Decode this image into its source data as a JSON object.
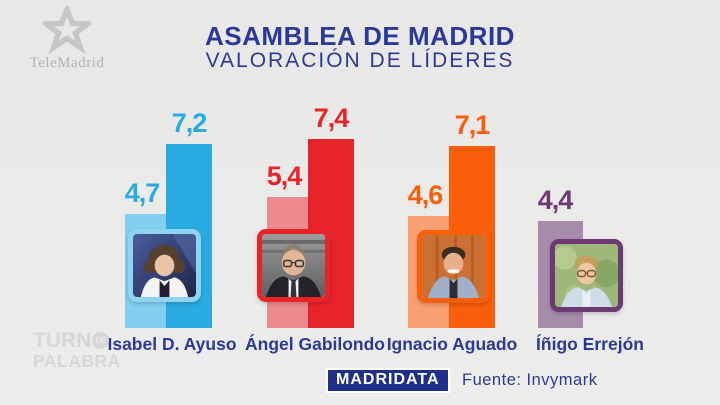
{
  "header": {
    "channel": "TeleMadrid",
    "channel_logo_color": "#c7c6c5"
  },
  "chart_data": {
    "type": "bar",
    "title": "ASAMBLEA DE MADRID",
    "subtitle": "VALORACIÓN DE LÍDERES",
    "title_color": "#2b3a98",
    "categories": [
      "Isabel D. Ayuso",
      "Ángel Gabilondo",
      "Ignacio Aguado",
      "Íñigo Errejón"
    ],
    "series": [
      {
        "name": "valor-bajo",
        "values": [
          4.7,
          5.4,
          4.6,
          4.4
        ]
      },
      {
        "name": "valor-alto",
        "values": [
          7.2,
          7.4,
          7.1,
          null
        ]
      }
    ],
    "ylim": [
      0,
      8
    ],
    "grid": false,
    "legend": "none",
    "leaders": [
      {
        "name": "Isabel D. Ayuso",
        "light": 4.7,
        "dark": 7.2,
        "light_label": "4,7",
        "dark_label": "7,2",
        "color_light": "#82cff0",
        "color_dark": "#29abe2",
        "label_color": "#29abe2",
        "frame_color": "#8ed4f1"
      },
      {
        "name": "Ángel Gabilondo",
        "light": 5.4,
        "dark": 7.4,
        "light_label": "5,4",
        "dark_label": "7,4",
        "color_light": "#ed8a90",
        "color_dark": "#e8242b",
        "label_color": "#e8242b",
        "frame_color": "#e8242b"
      },
      {
        "name": "Ignacio Aguado",
        "light": 4.6,
        "dark": 7.1,
        "light_label": "4,6",
        "dark_label": "7,1",
        "color_light": "#f9a072",
        "color_dark": "#f95f0b",
        "label_color": "#f95f0b",
        "frame_color": "#f95f0b"
      },
      {
        "name": "Íñigo Errejón",
        "light": 4.4,
        "dark": null,
        "light_label": "4,4",
        "dark_label": null,
        "color_light": "#a78bab",
        "color_dark": "#6e3a74",
        "label_color": "#6e3a74",
        "frame_color": "#6e3a74"
      }
    ]
  },
  "footer": {
    "turno": {
      "line1": "TURN",
      "circle": "DE",
      "line2": "PALABRA"
    },
    "badge": "MADRIDATA",
    "badge_bg": "#1e2f8c",
    "source": "Fuente: Invymark"
  }
}
